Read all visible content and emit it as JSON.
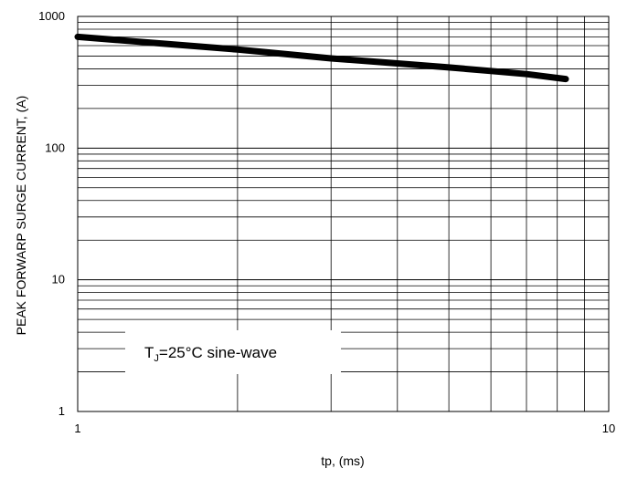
{
  "chart_data": {
    "type": "line",
    "title": "",
    "xlabel": "tp, (ms)",
    "ylabel": "PEAK FORWARP SURGE CURRENT, (A)",
    "xscale": "log",
    "yscale": "log",
    "xlim": [
      1,
      10
    ],
    "ylim": [
      1,
      1000
    ],
    "grid": true,
    "x_ticks": [
      "1",
      "10"
    ],
    "y_ticks": [
      "1",
      "10",
      "100",
      "1000"
    ],
    "series": [
      {
        "x": [
          1,
          2,
          3,
          4,
          5,
          6,
          7,
          8.3
        ],
        "values": [
          700,
          560,
          480,
          440,
          410,
          385,
          365,
          335
        ],
        "color": "#000000"
      }
    ],
    "annotation": {
      "prefix": "T",
      "subscript": "J",
      "suffix": "=25°C sine-wave"
    }
  }
}
